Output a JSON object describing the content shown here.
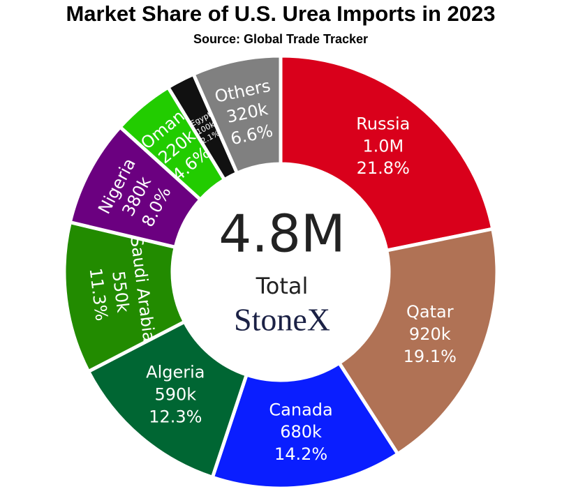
{
  "chart_data": {
    "type": "donut",
    "title": "Market Share of U.S. Urea Imports in 2023",
    "subtitle": "Source: Global Trade Tracker",
    "categories": [
      "Russia",
      "Qatar",
      "Canada",
      "Algeria",
      "Saudi Arabia",
      "Nigeria",
      "Oman",
      "Egypt",
      "Others"
    ],
    "values": [
      21.8,
      19.1,
      14.2,
      12.3,
      11.3,
      8.0,
      4.6,
      2.1,
      6.6
    ],
    "value_labels": [
      "21.8%",
      "19.1%",
      "14.2%",
      "12.3%",
      "11.3%",
      "8.0%",
      "4.6%",
      "2.1%",
      "6.6%"
    ],
    "amounts": [
      1000000,
      920000,
      680000,
      590000,
      550000,
      380000,
      220000,
      100000,
      320000
    ],
    "amount_labels": [
      "1.0M",
      "920k",
      "680k",
      "590k",
      "550k",
      "380k",
      "220k",
      "100k",
      "320k"
    ],
    "colors": [
      "#d9001b",
      "#b07255",
      "#0a1eff",
      "#006633",
      "#228b00",
      "#6b0080",
      "#22cc00",
      "#111111",
      "#808080"
    ],
    "total": 4800000,
    "total_label": "4.8M",
    "total_caption": "Total",
    "logo": "StoneX"
  }
}
